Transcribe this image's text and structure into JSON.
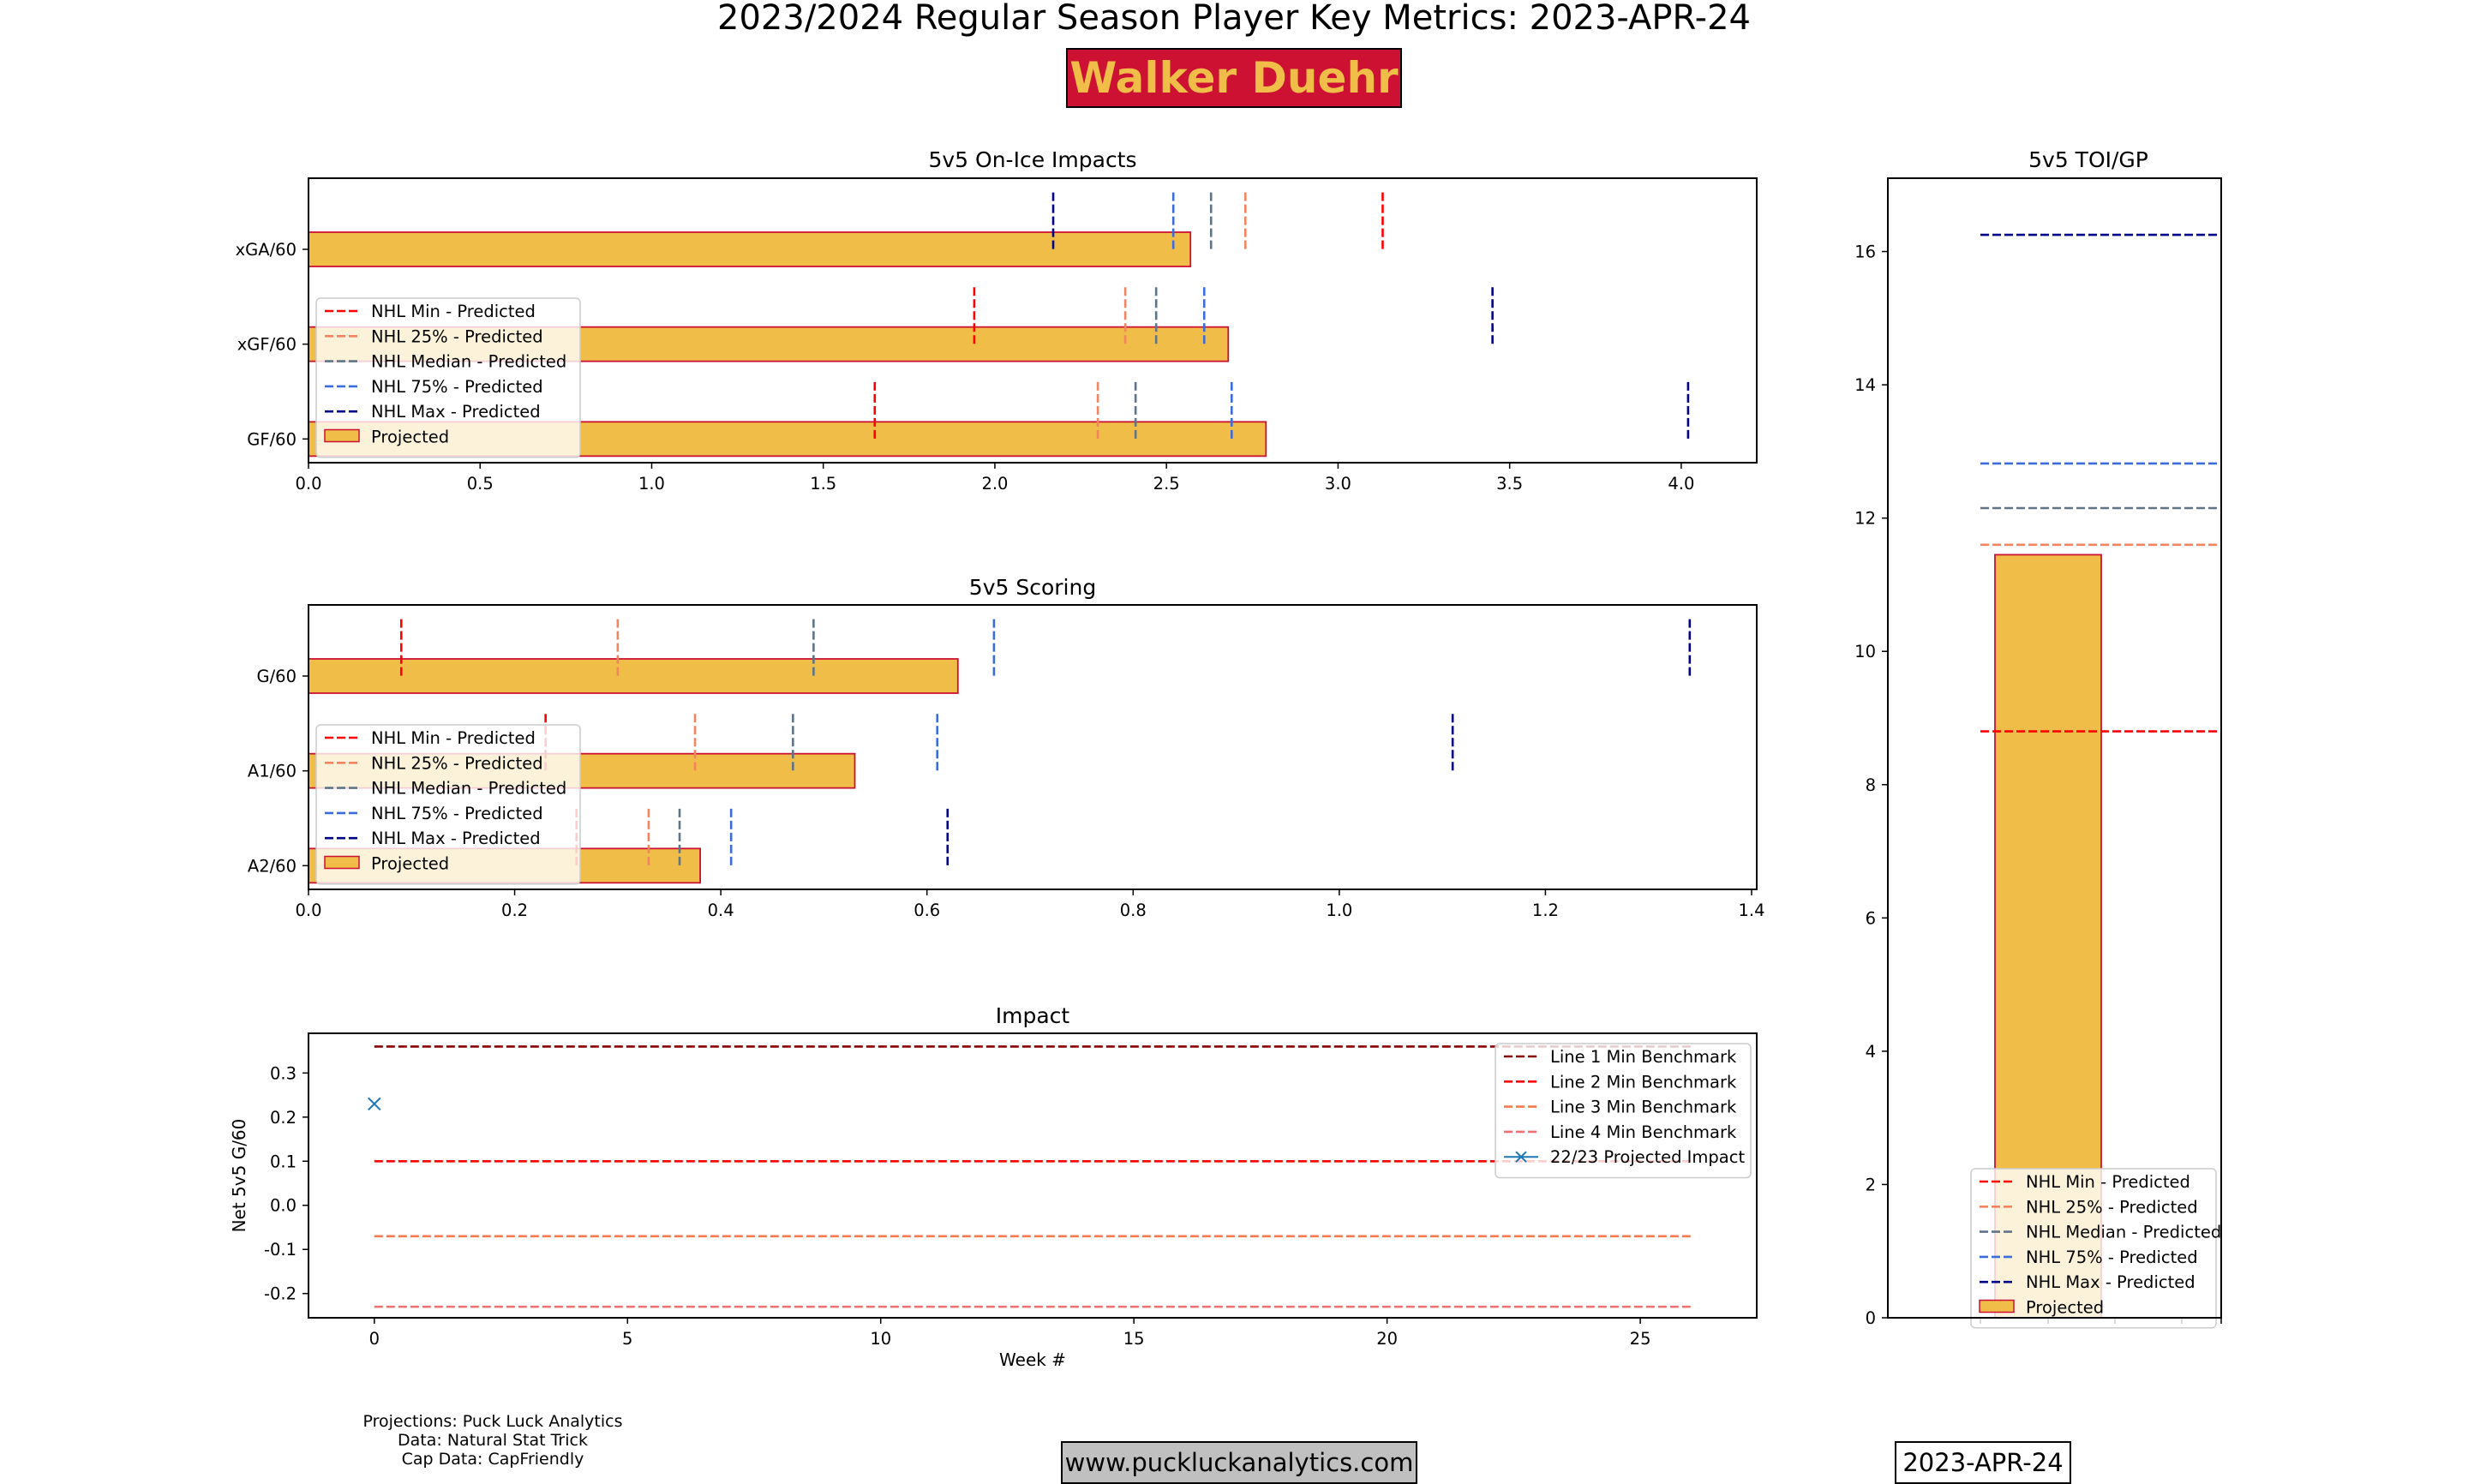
{
  "header": {
    "title": "2023/2024 Regular Season Player Key Metrics: 2023-APR-24",
    "player": "Walker Duehr"
  },
  "footer": {
    "sources": [
      "Projections: Puck Luck Analytics",
      "Data: Natural Stat Trick",
      "Cap Data: CapFriendly"
    ],
    "website": "www.puckluckanalytics.com",
    "date": "2023-APR-24"
  },
  "colors": {
    "bar_fill": "#f0be48",
    "bar_edge": "#cc1133",
    "title_badge_bg": "#cc1133",
    "title_badge_text": "#f0be48",
    "nhl_min": "#ff0000",
    "nhl_25": "#f4845f",
    "nhl_median": "#5f7489",
    "nhl_75": "#3a6ddb",
    "nhl_max": "#000088",
    "line1": "#8b0000",
    "line2": "#ff0000",
    "line3": "#f87a4c",
    "line4": "#f07070",
    "projected_marker": "#1f77b4"
  },
  "chart_data": [
    {
      "id": "onice",
      "type": "bar",
      "orientation": "horizontal",
      "title": "5v5 On-Ice Impacts",
      "categories": [
        "xGA/60",
        "xGF/60",
        "GF/60"
      ],
      "values": [
        2.57,
        2.68,
        2.79
      ],
      "xlim": [
        0,
        4.22
      ],
      "xticks": [
        "0.0",
        "0.5",
        "1.0",
        "1.5",
        "2.0",
        "2.5",
        "3.0",
        "3.5",
        "4.0"
      ],
      "benchmarks": {
        "NHL Min - Predicted": [
          3.13,
          1.94,
          1.65
        ],
        "NHL 25% - Predicted": [
          2.73,
          2.38,
          2.3
        ],
        "NHL Median - Predicted": [
          2.63,
          2.47,
          2.41
        ],
        "NHL 75% - Predicted": [
          2.52,
          2.61,
          2.69
        ],
        "NHL Max - Predicted": [
          2.17,
          3.45,
          4.02
        ]
      },
      "legend": [
        "NHL Min - Predicted",
        "NHL 25% - Predicted",
        "NHL Median - Predicted",
        "NHL 75% - Predicted",
        "NHL Max - Predicted",
        "Projected"
      ]
    },
    {
      "id": "scoring",
      "type": "bar",
      "orientation": "horizontal",
      "title": "5v5 Scoring",
      "categories": [
        "G/60",
        "A1/60",
        "A2/60"
      ],
      "values": [
        0.63,
        0.53,
        0.38
      ],
      "xlim": [
        0,
        1.405
      ],
      "xticks": [
        "0.0",
        "0.2",
        "0.4",
        "0.6",
        "0.8",
        "1.0",
        "1.2",
        "1.4"
      ],
      "benchmarks": {
        "NHL Min - Predicted": [
          0.09,
          0.23,
          0.26
        ],
        "NHL 25% - Predicted": [
          0.3,
          0.375,
          0.33
        ],
        "NHL Median - Predicted": [
          0.49,
          0.47,
          0.36
        ],
        "NHL 75% - Predicted": [
          0.665,
          0.61,
          0.41
        ],
        "NHL Max - Predicted": [
          1.34,
          1.11,
          0.62
        ]
      },
      "legend": [
        "NHL Min - Predicted",
        "NHL 25% - Predicted",
        "NHL Median - Predicted",
        "NHL 75% - Predicted",
        "NHL Max - Predicted",
        "Projected"
      ]
    },
    {
      "id": "impact",
      "type": "line",
      "title": "Impact",
      "xlabel": "Week #",
      "ylabel": "Net 5v5 G/60",
      "xlim": [
        -1.3,
        27.3
      ],
      "ylim": [
        -0.255,
        0.39
      ],
      "xticks": [
        "0",
        "5",
        "10",
        "15",
        "20",
        "25"
      ],
      "yticks": [
        "0.3",
        "0.2",
        "0.1",
        "0.0",
        "-0.1",
        "-0.2"
      ],
      "benchmarks": [
        {
          "name": "Line 1 Min Benchmark",
          "y": 0.36,
          "x": [
            0,
            26
          ]
        },
        {
          "name": "Line 2 Min Benchmark",
          "y": 0.1,
          "x": [
            0,
            26
          ]
        },
        {
          "name": "Line 3 Min Benchmark",
          "y": -0.07,
          "x": [
            0,
            26
          ]
        },
        {
          "name": "Line 4 Min Benchmark",
          "y": -0.23,
          "x": [
            0,
            26
          ]
        }
      ],
      "points": {
        "name": "22/23 Projected Impact",
        "x": [
          0
        ],
        "y": [
          0.23
        ]
      }
    },
    {
      "id": "toi",
      "type": "bar",
      "orientation": "vertical",
      "title": "5v5 TOI/GP",
      "value": 11.45,
      "ylim": [
        0,
        17.1
      ],
      "yticks": [
        "0",
        "2",
        "4",
        "6",
        "8",
        "10",
        "12",
        "14",
        "16"
      ],
      "benchmarks": {
        "NHL Min - Predicted": 8.8,
        "NHL 25% - Predicted": 11.6,
        "NHL Median - Predicted": 12.15,
        "NHL 75% - Predicted": 12.82,
        "NHL Max - Predicted": 16.25
      },
      "legend": [
        "NHL Min - Predicted",
        "NHL 25% - Predicted",
        "NHL Median - Predicted",
        "NHL 75% - Predicted",
        "NHL Max - Predicted",
        "Projected"
      ]
    }
  ]
}
